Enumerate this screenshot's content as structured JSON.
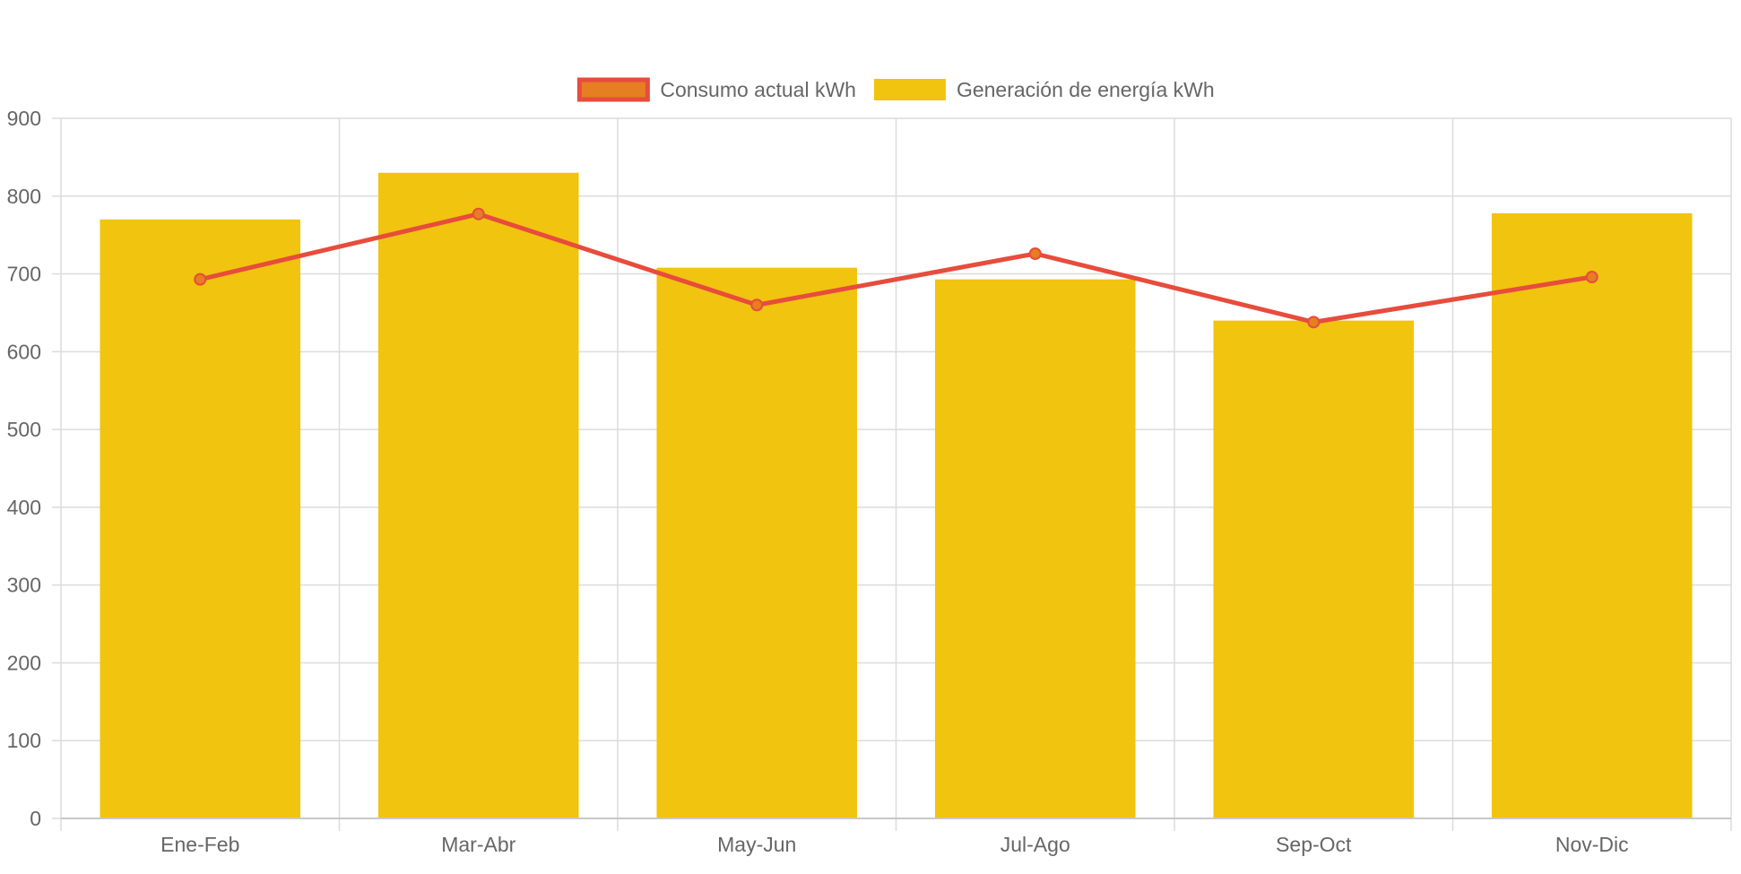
{
  "chart_data": {
    "type": "bar",
    "title": "",
    "xlabel": "",
    "ylabel": "",
    "categories": [
      "Ene-Feb",
      "Mar-Abr",
      "May-Jun",
      "Jul-Ago",
      "Sep-Oct",
      "Nov-Dic"
    ],
    "ylim": [
      0,
      900
    ],
    "yticks": [
      0,
      100,
      200,
      300,
      400,
      500,
      600,
      700,
      800,
      900
    ],
    "grid": true,
    "legend_position": "top",
    "series": [
      {
        "name": "Consumo actual kWh",
        "type": "line",
        "color": "#e74c3c",
        "point_color": "#e67e22",
        "values": [
          693,
          777,
          660,
          726,
          638,
          696
        ]
      },
      {
        "name": "Generación de energía kWh",
        "type": "bar",
        "color": "#f1c40f",
        "values": [
          770,
          830,
          708,
          693,
          640,
          778
        ]
      }
    ]
  }
}
